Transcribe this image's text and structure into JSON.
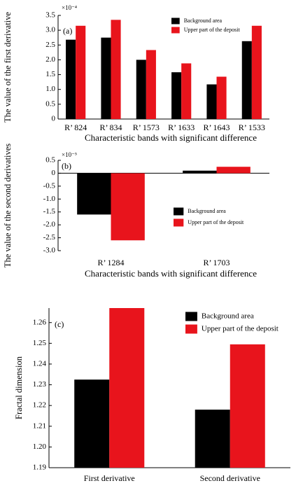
{
  "chart_data": [
    {
      "type": "bar",
      "panel_label": "(a)",
      "axis_multiplier": "×10⁻⁴",
      "ylabel": "The value of the first derivative",
      "xlabel": "Characteristic bands with significant difference",
      "categories": [
        "R’ 824",
        "R’ 834",
        "R’ 1573",
        "R’ 1633",
        "R’ 1643",
        "R’ 1533"
      ],
      "series": [
        {
          "name": "Background area",
          "color": "#000000",
          "values": [
            2.68,
            2.75,
            2.0,
            1.58,
            1.17,
            2.63
          ]
        },
        {
          "name": "Upper part of the deposit",
          "color": "#e8141c",
          "values": [
            3.15,
            3.35,
            2.33,
            1.88,
            1.43,
            3.15
          ]
        }
      ],
      "ylim": [
        0,
        3.5
      ],
      "yticks": [
        0,
        0.5,
        {
          "value": 1,
          "label": "1.0"
        },
        1.5,
        {
          "value": 2,
          "label": "2.0"
        },
        2.5,
        {
          "value": 3,
          "label": "3.0"
        },
        3.5
      ],
      "legend": "upper right"
    },
    {
      "type": "bar",
      "panel_label": "(b)",
      "axis_multiplier": "×10⁻⁵",
      "ylabel": "The value of the second derivatives",
      "xlabel": "Characteristic bands with significant difference",
      "categories": [
        "R’ 1284",
        "R’ 1703"
      ],
      "series": [
        {
          "name": "Background area",
          "color": "#000000",
          "values": [
            -1.6,
            0.1
          ]
        },
        {
          "name": "Upper part of the deposit",
          "color": "#e8141c",
          "values": [
            -2.6,
            0.25
          ]
        }
      ],
      "ylim": [
        -3,
        0.5
      ],
      "yticks": [
        0.5,
        0,
        -0.5,
        {
          "value": -1,
          "label": "-1.0"
        },
        -1.5,
        {
          "value": -2,
          "label": "-2.0"
        },
        -2.5,
        {
          "value": -3,
          "label": "-3.0"
        }
      ],
      "legend": "center right"
    },
    {
      "type": "bar",
      "panel_label": "(c)",
      "ylabel": "Fractal dimension",
      "categories": [
        "First derivative",
        "Second derivative"
      ],
      "series": [
        {
          "name": "Background area",
          "color": "#000000",
          "values": [
            1.2325,
            1.218
          ]
        },
        {
          "name": "Upper part of the deposit",
          "color": "#e8141c",
          "values": [
            1.267,
            1.2495
          ]
        }
      ],
      "ylim": [
        1.19,
        1.267
      ],
      "yticks": [
        1.19,
        {
          "value": 1.2,
          "label": "1.20"
        },
        1.21,
        1.22,
        1.23,
        1.24,
        1.25,
        1.26
      ],
      "legend": "upper right"
    }
  ]
}
